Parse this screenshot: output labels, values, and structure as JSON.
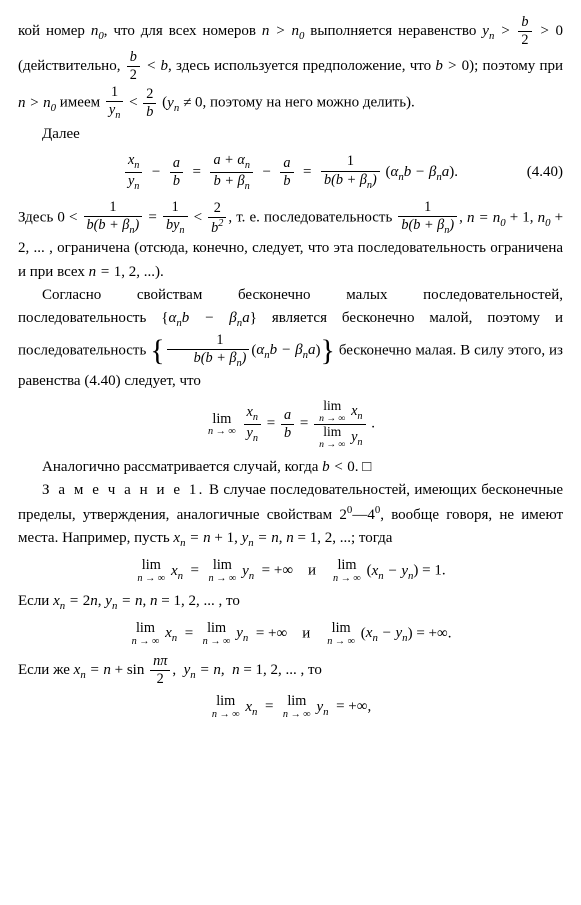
{
  "para1_a": "кой номер ",
  "para1_b": ", что для всех номеров ",
  "para1_c": " выполняется нера­венство ",
  "para1_d": " (действительно, ",
  "para1_e": ", здесь используется предположение, что ",
  "para1_f": "); поэтому при ",
  "para1_g": " имеем ",
  "para1_h": " (",
  "para1_i": ", поэтому на него можно делить).",
  "dalee": "Далее",
  "eqnum": "(4.40)",
  "zdes": "Здесь ",
  "para2_a": ", т. е. последовательность ",
  "para2_b": ", ограничена (отсюда, конечно, следует, что эта последовательность ограничена и при всех ",
  "para2_c": ").",
  "para3_a": "Согласно свойствам бесконечно малых последовательнос­тей, последовательность ",
  "para3_b": " является бесконечно ма­лой, поэтому и последовательность ",
  "para3_c": " бес­конечно малая. В силу этого, из равенства (4.40) следует, что",
  "para4": "Аналогично рассматривается случай, когда ",
  "para4_b": ". □",
  "zam_head": "З а м е ч а н и е 1.",
  "zam_a": " В случае последовательностей, имею­щих бесконечные пределы, утверждения, аналогичные свойствам ",
  "zam_b": ", вообще говоря, не имеют места. Напри­мер, пусть ",
  "zam_c": "; тогда",
  "i_word": "и",
  "esli": "Если ",
  "esli_to": ", то",
  "eslizhe": "Если же ",
  "n0": "n",
  "sym_n": "n",
  "sym_x": "x",
  "sym_y": "y",
  "sym_a": "a",
  "sym_b": "b",
  "sym_alpha": "α",
  "sym_beta": "β",
  "sym_gt": ">",
  "sym_lt": "<",
  "sym_eq": "=",
  "sym_ne": "≠",
  "sym_minus": "−",
  "sym_plus": "+",
  "sym_inf": "∞",
  "sym_to": "→",
  "sym_pi": "π",
  "lim_label": "lim",
  "sin_label": "sin",
  "num_0": "0",
  "num_1": "1",
  "num_2": "2",
  "num_4": "4",
  "list_12": "1, 2, ...",
  "list_n0seq": " + 1, ",
  "list_n0seq2": " + 2, ... ",
  "props": "2",
  "props_dash": "—4",
  "ex1_xn": " + 1, ",
  "ex1_yn": ", ",
  "ex1_n": " = 1, 2, ...",
  "ex2_xn": "2",
  "ex3_xn": " + ",
  "plus_inf": "+∞",
  "dot": ".",
  "comma": ",",
  "colon_sp": "  "
}
